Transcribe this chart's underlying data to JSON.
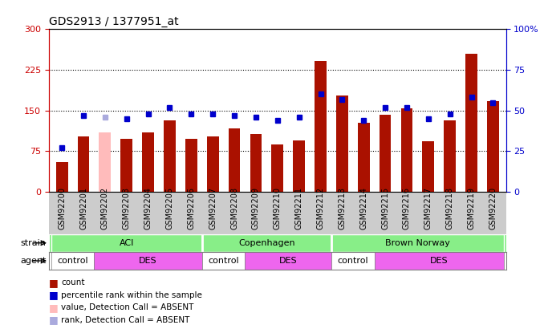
{
  "title": "GDS2913 / 1377951_at",
  "samples": [
    "GSM92200",
    "GSM92201",
    "GSM92202",
    "GSM92203",
    "GSM92204",
    "GSM92205",
    "GSM92206",
    "GSM92207",
    "GSM92208",
    "GSM92209",
    "GSM92210",
    "GSM92211",
    "GSM92212",
    "GSM92213",
    "GSM92214",
    "GSM92215",
    "GSM92216",
    "GSM92217",
    "GSM92218",
    "GSM92219",
    "GSM92220"
  ],
  "counts": [
    55,
    102,
    110,
    97,
    110,
    132,
    97,
    102,
    117,
    107,
    88,
    95,
    242,
    177,
    127,
    142,
    154,
    93,
    132,
    254,
    168
  ],
  "absent_count": [
    null,
    null,
    110,
    null,
    null,
    null,
    null,
    null,
    null,
    null,
    null,
    null,
    null,
    null,
    null,
    null,
    null,
    null,
    null,
    null,
    null
  ],
  "percentile_ranks": [
    27,
    47,
    null,
    45,
    48,
    52,
    48,
    48,
    47,
    46,
    44,
    46,
    60,
    57,
    44,
    52,
    52,
    45,
    48,
    58,
    55
  ],
  "absent_rank": [
    null,
    null,
    46,
    null,
    null,
    null,
    null,
    null,
    null,
    null,
    null,
    null,
    null,
    null,
    null,
    null,
    null,
    null,
    null,
    null,
    null
  ],
  "ylim_left": [
    0,
    300
  ],
  "yticks_left": [
    0,
    75,
    150,
    225,
    300
  ],
  "yticks_right": [
    0,
    25,
    50,
    75,
    100
  ],
  "ylabel_left_color": "#cc0000",
  "ylabel_right_color": "#0000cc",
  "bar_color_normal": "#aa1100",
  "bar_color_absent": "#ffbbbb",
  "dot_color_normal": "#0000cc",
  "dot_color_absent": "#aaaadd",
  "strain_groups": [
    {
      "label": "ACI",
      "start": 0,
      "end": 6
    },
    {
      "label": "Copenhagen",
      "start": 7,
      "end": 12
    },
    {
      "label": "Brown Norway",
      "start": 13,
      "end": 20
    }
  ],
  "agent_groups": [
    {
      "label": "control",
      "start": 0,
      "end": 1,
      "color": "#ffffff"
    },
    {
      "label": "DES",
      "start": 2,
      "end": 6,
      "color": "#ee66ee"
    },
    {
      "label": "control",
      "start": 7,
      "end": 8,
      "color": "#ffffff"
    },
    {
      "label": "DES",
      "start": 9,
      "end": 12,
      "color": "#ee66ee"
    },
    {
      "label": "control",
      "start": 13,
      "end": 14,
      "color": "#ffffff"
    },
    {
      "label": "DES",
      "start": 15,
      "end": 20,
      "color": "#ee66ee"
    }
  ],
  "strain_color": "#88ee88",
  "xtick_bg_color": "#cccccc"
}
